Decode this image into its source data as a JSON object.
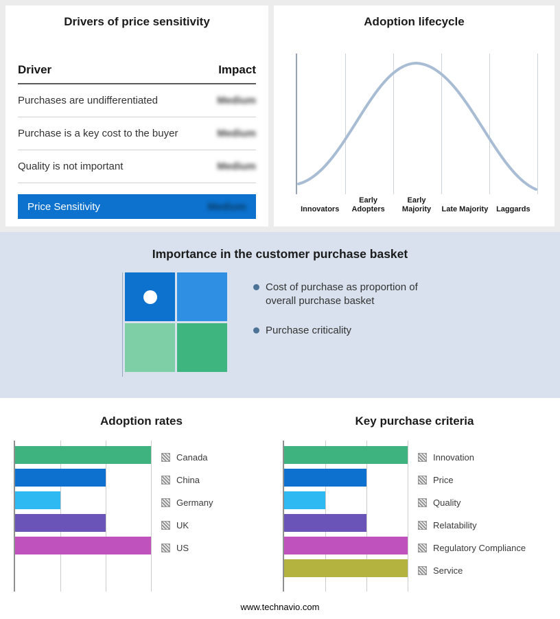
{
  "page": {
    "footer": "www.technavio.com",
    "colors": {
      "background": "#ececec",
      "panel": "#ffffff",
      "band": "#d8e1ed",
      "accent_blue": "#0c72ce"
    }
  },
  "drivers_panel": {
    "title": "Drivers of price sensitivity",
    "table": {
      "header_driver": "Driver",
      "header_impact": "Impact",
      "rows": [
        {
          "driver": "Purchases are undifferentiated",
          "impact": "Medium"
        },
        {
          "driver": "Purchase is a key cost to the buyer",
          "impact": "Medium"
        },
        {
          "driver": "Quality is not important",
          "impact": "Medium"
        }
      ],
      "summary": {
        "label": "Price Sensitivity",
        "impact": "Medium",
        "background": "#0c72ce"
      },
      "impact_style": "blurred"
    }
  },
  "basket_panel": {
    "bullet_color": "#4c7296"
  },
  "chart_data": [
    {
      "id": "adoption-lifecycle",
      "type": "line",
      "title": "Adoption lifecycle",
      "categories": [
        "Innovators",
        "Early Adopters",
        "Early Majority",
        "Late Majority",
        "Laggards"
      ],
      "values": [
        10,
        60,
        100,
        60,
        10
      ],
      "color": "#a8bcd4",
      "grid": true,
      "notes": "stylized bell-shaped adoption curve; no numeric axis labels shown, values are relative curve heights at each stage"
    },
    {
      "id": "adoption-rates",
      "type": "bar",
      "orientation": "horizontal",
      "title": "Adoption rates",
      "categories": [
        "Canada",
        "China",
        "Germany",
        "UK",
        "US"
      ],
      "values": [
        3,
        2,
        1,
        2,
        3
      ],
      "xlim": [
        0,
        3
      ],
      "colors": [
        "#3fb37f",
        "#0d72cf",
        "#2fb9f2",
        "#6a54b8",
        "#c052be"
      ],
      "grid": true,
      "legend_position": "right",
      "notes": "no numeric tick labels shown; values estimated in gridline units"
    },
    {
      "id": "key-purchase-criteria",
      "type": "bar",
      "orientation": "horizontal",
      "title": "Key purchase criteria",
      "categories": [
        "Innovation",
        "Price",
        "Quality",
        "Relatability",
        "Regulatory Compliance",
        "Service"
      ],
      "values": [
        3,
        2,
        1,
        2,
        3,
        3
      ],
      "xlim": [
        0,
        3
      ],
      "colors": [
        "#3fb37f",
        "#0d72cf",
        "#2fb9f2",
        "#6a54b8",
        "#c052be",
        "#b4b33f"
      ],
      "grid": true,
      "legend_position": "right",
      "notes": "no numeric tick labels shown; values estimated in gridline units"
    },
    {
      "id": "purchase-basket-quadrant",
      "type": "heatmap",
      "title": "Importance in the customer purchase basket",
      "bullets": [
        "Cost of purchase as proportion of overall purchase basket",
        "Purchase criticality"
      ],
      "rows": 2,
      "cols": 2,
      "cell_colors": [
        [
          "#0c72ce",
          "#2f8fe3"
        ],
        [
          "#7fcfa6",
          "#3eb57e"
        ]
      ],
      "marker": {
        "row": 0,
        "col": 0,
        "shape": "circle",
        "color": "#ffffff"
      }
    }
  ]
}
